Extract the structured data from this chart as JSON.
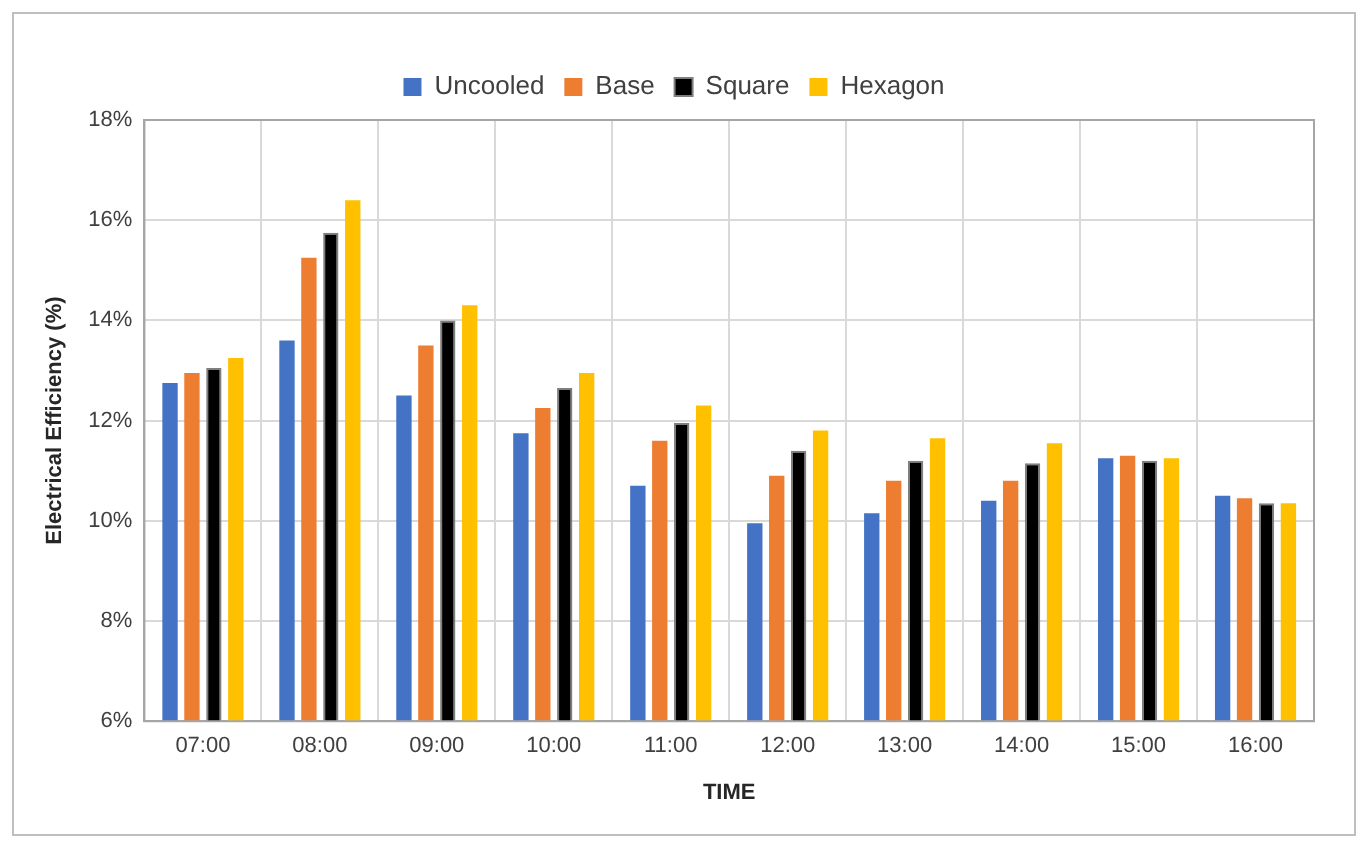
{
  "chart_data": {
    "type": "bar",
    "xlabel": "TIME",
    "ylabel": "Electrical Efficiency (%)",
    "categories": [
      "07:00",
      "08:00",
      "09:00",
      "10:00",
      "11:00",
      "12:00",
      "13:00",
      "14:00",
      "15:00",
      "16:00"
    ],
    "series": [
      {
        "name": "Uncooled",
        "color": "#4472c4",
        "values": [
          12.75,
          13.6,
          12.5,
          11.75,
          10.7,
          9.95,
          10.15,
          10.4,
          11.25,
          10.5
        ]
      },
      {
        "name": "Base",
        "color": "#ed7d31",
        "values": [
          12.95,
          15.25,
          13.5,
          12.25,
          11.6,
          10.9,
          10.8,
          10.8,
          11.3,
          10.45
        ]
      },
      {
        "name": "Square",
        "color": "#000000",
        "values": [
          13.05,
          15.75,
          14.0,
          12.65,
          11.95,
          11.4,
          11.2,
          11.15,
          11.2,
          10.35
        ]
      },
      {
        "name": "Hexagon",
        "color": "#ffc000",
        "values": [
          13.25,
          16.4,
          14.3,
          12.95,
          12.3,
          11.8,
          11.65,
          11.55,
          11.25,
          10.35
        ]
      }
    ],
    "ylim": [
      6,
      18
    ],
    "yticks": [
      {
        "value": 6,
        "label": "6%"
      },
      {
        "value": 8,
        "label": "8%"
      },
      {
        "value": 10,
        "label": "10%"
      },
      {
        "value": 12,
        "label": "12%"
      },
      {
        "value": 14,
        "label": "14%"
      },
      {
        "value": 16,
        "label": "16%"
      },
      {
        "value": 18,
        "label": "18%"
      }
    ],
    "grid": true,
    "legend": "top"
  }
}
